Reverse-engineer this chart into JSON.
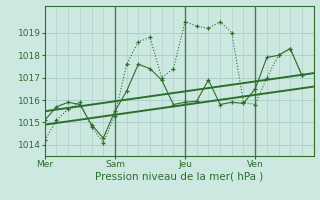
{
  "background_color": "#cce8e0",
  "grid_color": "#a8ccc8",
  "line_color": "#2d6e2d",
  "vline_color": "#4a7a4a",
  "title": "Pression niveau de la mer( hPa )",
  "x_tick_labels": [
    "Mer",
    "Sam",
    "Jeu",
    "Ven"
  ],
  "x_tick_positions": [
    0,
    3,
    6,
    9
  ],
  "ylim": [
    1013.5,
    1020.2
  ],
  "yticks": [
    1014,
    1015,
    1016,
    1017,
    1018,
    1019
  ],
  "xlim": [
    0,
    11.5
  ],
  "vline_positions": [
    3,
    6,
    9
  ],
  "series1_x": [
    0.0,
    0.5,
    1.0,
    1.5,
    2.0,
    2.5,
    3.0,
    3.5,
    4.0,
    4.5,
    5.0,
    5.5,
    6.0,
    6.5,
    7.0,
    7.5,
    8.0,
    8.5,
    9.0,
    9.5,
    10.0,
    10.5,
    11.0
  ],
  "series1_y": [
    1014.2,
    1015.1,
    1015.6,
    1015.9,
    1014.8,
    1014.1,
    1015.3,
    1017.6,
    1018.6,
    1018.8,
    1017.0,
    1017.4,
    1019.5,
    1019.3,
    1019.2,
    1019.5,
    1019.0,
    1015.9,
    1015.8,
    1017.0,
    1018.0,
    1018.3,
    1017.1
  ],
  "series2_x": [
    0.0,
    0.5,
    1.0,
    1.5,
    2.0,
    2.5,
    3.0,
    3.5,
    4.0,
    4.5,
    5.0,
    5.5,
    6.0,
    6.5,
    7.0,
    7.5,
    8.0,
    8.5,
    9.0,
    9.5,
    10.0,
    10.5,
    11.0
  ],
  "series2_y": [
    1015.1,
    1015.7,
    1015.9,
    1015.8,
    1014.9,
    1014.3,
    1015.5,
    1016.4,
    1017.6,
    1017.4,
    1016.9,
    1015.8,
    1015.9,
    1015.95,
    1016.9,
    1015.8,
    1015.9,
    1015.85,
    1016.5,
    1017.9,
    1018.0,
    1018.3,
    1017.1
  ],
  "trend1_x": [
    0,
    11.5
  ],
  "trend1_y": [
    1014.9,
    1016.6
  ],
  "trend2_x": [
    0,
    11.5
  ],
  "trend2_y": [
    1015.5,
    1017.2
  ]
}
